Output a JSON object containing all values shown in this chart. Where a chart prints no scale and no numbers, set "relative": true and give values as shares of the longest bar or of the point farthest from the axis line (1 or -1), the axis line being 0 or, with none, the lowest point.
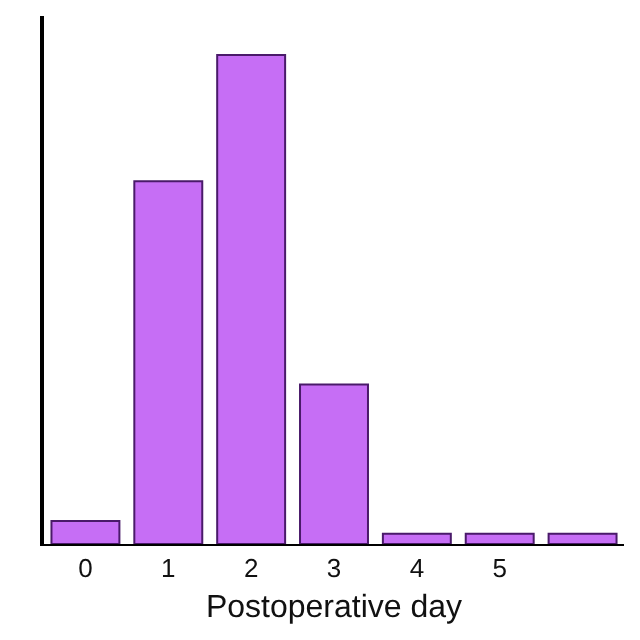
{
  "chart_data": {
    "type": "bar",
    "xlabel": "Postoperative day",
    "relative": true,
    "categories": [
      "0",
      "1",
      "2",
      "3",
      "4",
      "5",
      null
    ],
    "values": [
      0.047,
      0.742,
      1,
      0.326,
      0.021,
      0.021,
      0.021
    ],
    "color": "#c66ef5"
  }
}
